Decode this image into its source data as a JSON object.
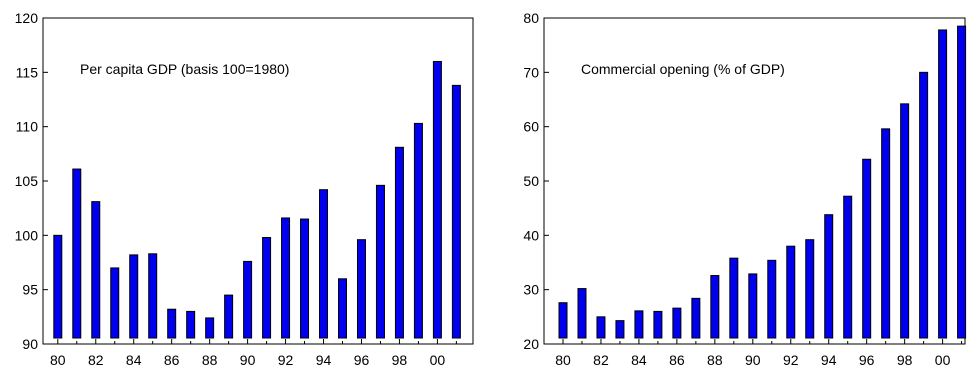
{
  "chart_data": [
    {
      "type": "bar",
      "title": "Per capita GDP (basis 100=1980)",
      "xlabel": "",
      "ylabel": "",
      "categories": [
        "80",
        "81",
        "82",
        "83",
        "84",
        "85",
        "86",
        "87",
        "88",
        "89",
        "90",
        "91",
        "92",
        "93",
        "94",
        "95",
        "96",
        "97",
        "98",
        "99",
        "00",
        "01"
      ],
      "x_tick_labels": [
        "80",
        "82",
        "84",
        "86",
        "88",
        "90",
        "92",
        "94",
        "96",
        "98",
        "00"
      ],
      "y_ticks": [
        90,
        95,
        100,
        105,
        110,
        115,
        120
      ],
      "ylim": [
        90,
        120
      ],
      "values": [
        100.0,
        106.1,
        103.1,
        97.0,
        98.2,
        98.3,
        93.2,
        93.0,
        92.4,
        94.5,
        97.6,
        99.8,
        101.6,
        101.5,
        104.2,
        96.0,
        99.6,
        104.6,
        108.1,
        110.3,
        116.0,
        113.8
      ],
      "bar_color": "#0000ee",
      "grid": false
    },
    {
      "type": "bar",
      "title": "Commercial opening (% of GDP)",
      "xlabel": "",
      "ylabel": "",
      "categories": [
        "80",
        "81",
        "82",
        "83",
        "84",
        "85",
        "86",
        "87",
        "88",
        "89",
        "90",
        "91",
        "92",
        "93",
        "94",
        "95",
        "96",
        "97",
        "98",
        "99",
        "00",
        "01"
      ],
      "x_tick_labels": [
        "80",
        "82",
        "84",
        "86",
        "88",
        "90",
        "92",
        "94",
        "96",
        "98",
        "00"
      ],
      "y_ticks": [
        20,
        30,
        40,
        50,
        60,
        70,
        80
      ],
      "ylim": [
        20,
        80
      ],
      "values": [
        27.6,
        30.2,
        25.0,
        24.3,
        26.1,
        26.0,
        26.6,
        28.4,
        32.6,
        35.8,
        32.9,
        35.4,
        38.0,
        39.2,
        43.8,
        47.2,
        54.0,
        59.6,
        64.2,
        70.0,
        77.8,
        78.5
      ],
      "bar_color": "#0000ee",
      "grid": false
    }
  ]
}
